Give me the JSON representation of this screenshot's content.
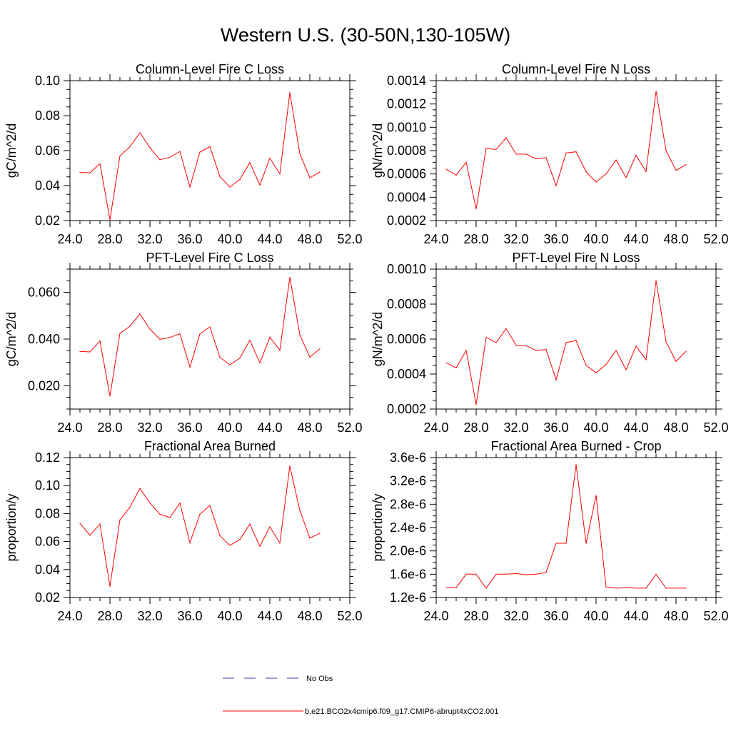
{
  "figure": {
    "title": "Western U.S. (30-50N,130-105W)"
  },
  "legend": {
    "items": [
      {
        "label": "No Obs",
        "color": "#3a3ab0",
        "style": "dashed"
      },
      {
        "label": "b.e21.BCO2x4cmip6.f09_g17.CMIP6-abrupt4xCO2.001",
        "color": "#ff0000",
        "style": "solid"
      }
    ]
  },
  "chart_data": [
    {
      "type": "line",
      "title": "Column-Level Fire C Loss",
      "ylabel": "gC/m^2/d",
      "xlim": [
        24,
        52
      ],
      "ylim": [
        0.02,
        0.1
      ],
      "xticks": [
        "24.0",
        "28.0",
        "32.0",
        "36.0",
        "40.0",
        "44.0",
        "48.0",
        "52.0"
      ],
      "yticks": [
        "0.02",
        "0.04",
        "0.06",
        "0.08",
        "0.10"
      ],
      "ytick_values": [
        0.02,
        0.04,
        0.06,
        0.08,
        0.1
      ],
      "series": [
        {
          "color": "#ff0000",
          "x": [
            25,
            26,
            27,
            28,
            29,
            30,
            31,
            32,
            33,
            34,
            35,
            36,
            37,
            38,
            39,
            40,
            41,
            42,
            43,
            44,
            45,
            46,
            47,
            48,
            49
          ],
          "values": [
            0.0475,
            0.0473,
            0.0525,
            0.0205,
            0.057,
            0.0622,
            0.0702,
            0.0617,
            0.0548,
            0.0562,
            0.0595,
            0.0392,
            0.0592,
            0.0623,
            0.0452,
            0.0392,
            0.0435,
            0.0532,
            0.0403,
            0.0557,
            0.0467,
            0.0932,
            0.0582,
            0.0445,
            0.0478
          ]
        }
      ]
    },
    {
      "type": "line",
      "title": "Column-Level Fire N Loss",
      "ylabel": "gN/m^2/d",
      "xlim": [
        24,
        52
      ],
      "ylim": [
        0.0002,
        0.0014
      ],
      "xticks": [
        "24.0",
        "28.0",
        "32.0",
        "36.0",
        "40.0",
        "44.0",
        "48.0",
        "52.0"
      ],
      "yticks": [
        "0.0002",
        "0.0004",
        "0.0006",
        "0.0008",
        "0.0010",
        "0.0012",
        "0.0014"
      ],
      "ytick_values": [
        0.0002,
        0.0004,
        0.0006,
        0.0008,
        0.001,
        0.0012,
        0.0014
      ],
      "series": [
        {
          "color": "#ff0000",
          "x": [
            25,
            26,
            27,
            28,
            29,
            30,
            31,
            32,
            33,
            34,
            35,
            36,
            37,
            38,
            39,
            40,
            41,
            42,
            43,
            44,
            45,
            46,
            47,
            48,
            49
          ],
          "values": [
            0.00064,
            0.00059,
            0.0007,
            0.0003,
            0.00082,
            0.00081,
            0.00091,
            0.00077,
            0.00077,
            0.00073,
            0.00074,
            0.0005,
            0.00078,
            0.00079,
            0.00062,
            0.00053,
            0.0006,
            0.00072,
            0.00057,
            0.00076,
            0.00062,
            0.00131,
            0.0008,
            0.00063,
            0.00068
          ]
        }
      ]
    },
    {
      "type": "line",
      "title": "PFT-Level Fire C Loss",
      "ylabel": "gC/m^2/d",
      "xlim": [
        24,
        52
      ],
      "ylim": [
        0.01,
        0.07
      ],
      "xticks": [
        "24.0",
        "28.0",
        "32.0",
        "36.0",
        "40.0",
        "44.0",
        "48.0",
        "52.0"
      ],
      "yticks": [
        "0.020",
        "0.040",
        "0.060"
      ],
      "ytick_values": [
        0.02,
        0.04,
        0.06
      ],
      "series": [
        {
          "color": "#ff0000",
          "x": [
            25,
            26,
            27,
            28,
            29,
            30,
            31,
            32,
            33,
            34,
            35,
            36,
            37,
            38,
            39,
            40,
            41,
            42,
            43,
            44,
            45,
            46,
            47,
            48,
            49
          ],
          "values": [
            0.0347,
            0.0345,
            0.0393,
            0.0155,
            0.0425,
            0.0455,
            0.0508,
            0.0443,
            0.0399,
            0.0407,
            0.0423,
            0.028,
            0.0422,
            0.0452,
            0.0322,
            0.029,
            0.0318,
            0.0395,
            0.0298,
            0.0408,
            0.0352,
            0.0665,
            0.0418,
            0.0323,
            0.0358
          ]
        }
      ]
    },
    {
      "type": "line",
      "title": "PFT-Level Fire N Loss",
      "ylabel": "gN/m^2/d",
      "xlim": [
        24,
        52
      ],
      "ylim": [
        0.0002,
        0.001
      ],
      "xticks": [
        "24.0",
        "28.0",
        "32.0",
        "36.0",
        "40.0",
        "44.0",
        "48.0",
        "52.0"
      ],
      "yticks": [
        "0.0002",
        "0.0004",
        "0.0006",
        "0.0008",
        "0.0010"
      ],
      "ytick_values": [
        0.0002,
        0.0004,
        0.0006,
        0.0008,
        0.001
      ],
      "series": [
        {
          "color": "#ff0000",
          "x": [
            25,
            26,
            27,
            28,
            29,
            30,
            31,
            32,
            33,
            34,
            35,
            36,
            37,
            38,
            39,
            40,
            41,
            42,
            43,
            44,
            45,
            46,
            47,
            48,
            49
          ],
          "values": [
            0.000465,
            0.000435,
            0.000535,
            0.000225,
            0.00061,
            0.00058,
            0.00066,
            0.000565,
            0.000562,
            0.000535,
            0.00054,
            0.000367,
            0.00058,
            0.000592,
            0.00045,
            0.000407,
            0.000455,
            0.000535,
            0.000425,
            0.00056,
            0.000482,
            0.000935,
            0.000585,
            0.000472,
            0.00053
          ]
        }
      ]
    },
    {
      "type": "line",
      "title": "Fractional Area Burned",
      "ylabel": "proportion/y",
      "xlim": [
        24,
        52
      ],
      "ylim": [
        0.02,
        0.12
      ],
      "xticks": [
        "24.0",
        "28.0",
        "32.0",
        "36.0",
        "40.0",
        "44.0",
        "48.0",
        "52.0"
      ],
      "yticks": [
        "0.02",
        "0.04",
        "0.06",
        "0.08",
        "0.10",
        "0.12"
      ],
      "ytick_values": [
        0.02,
        0.04,
        0.06,
        0.08,
        0.1,
        0.12
      ],
      "series": [
        {
          "color": "#ff0000",
          "x": [
            25,
            26,
            27,
            28,
            29,
            30,
            31,
            32,
            33,
            34,
            35,
            36,
            37,
            38,
            39,
            40,
            41,
            42,
            43,
            44,
            45,
            46,
            47,
            48,
            49
          ],
          "values": [
            0.073,
            0.0645,
            0.0725,
            0.028,
            0.0755,
            0.0845,
            0.098,
            0.0875,
            0.0795,
            0.0772,
            0.0875,
            0.0592,
            0.0795,
            0.0858,
            0.0642,
            0.0572,
            0.0615,
            0.0725,
            0.0565,
            0.0705,
            0.059,
            0.114,
            0.0822,
            0.0625,
            0.0658
          ]
        }
      ]
    },
    {
      "type": "line",
      "title": "Fractional Area Burned - Crop",
      "ylabel": "proportion/y",
      "xlim": [
        24,
        52
      ],
      "ylim": [
        1.2e-06,
        3.6e-06
      ],
      "xticks": [
        "24.0",
        "28.0",
        "32.0",
        "36.0",
        "40.0",
        "44.0",
        "48.0",
        "52.0"
      ],
      "yticks": [
        "1.2e-6",
        "1.6e-6",
        "2.0e-6",
        "2.4e-6",
        "2.8e-6",
        "3.2e-6",
        "3.6e-6"
      ],
      "ytick_values": [
        1.2e-06,
        1.6e-06,
        2e-06,
        2.4e-06,
        2.8e-06,
        3.2e-06,
        3.6e-06
      ],
      "series": [
        {
          "color": "#ff0000",
          "x": [
            25,
            26,
            27,
            28,
            29,
            30,
            31,
            32,
            33,
            34,
            35,
            36,
            37,
            38,
            39,
            40,
            41,
            42,
            43,
            44,
            45,
            46,
            47,
            48,
            49
          ],
          "values": [
            1.37e-06,
            1.37e-06,
            1.6e-06,
            1.6e-06,
            1.36e-06,
            1.6e-06,
            1.6e-06,
            1.61e-06,
            1.59e-06,
            1.6e-06,
            1.63e-06,
            2.13e-06,
            2.13e-06,
            3.48e-06,
            2.13e-06,
            2.95e-06,
            1.38e-06,
            1.36e-06,
            1.37e-06,
            1.36e-06,
            1.36e-06,
            1.6e-06,
            1.36e-06,
            1.36e-06,
            1.36e-06
          ]
        }
      ]
    }
  ]
}
